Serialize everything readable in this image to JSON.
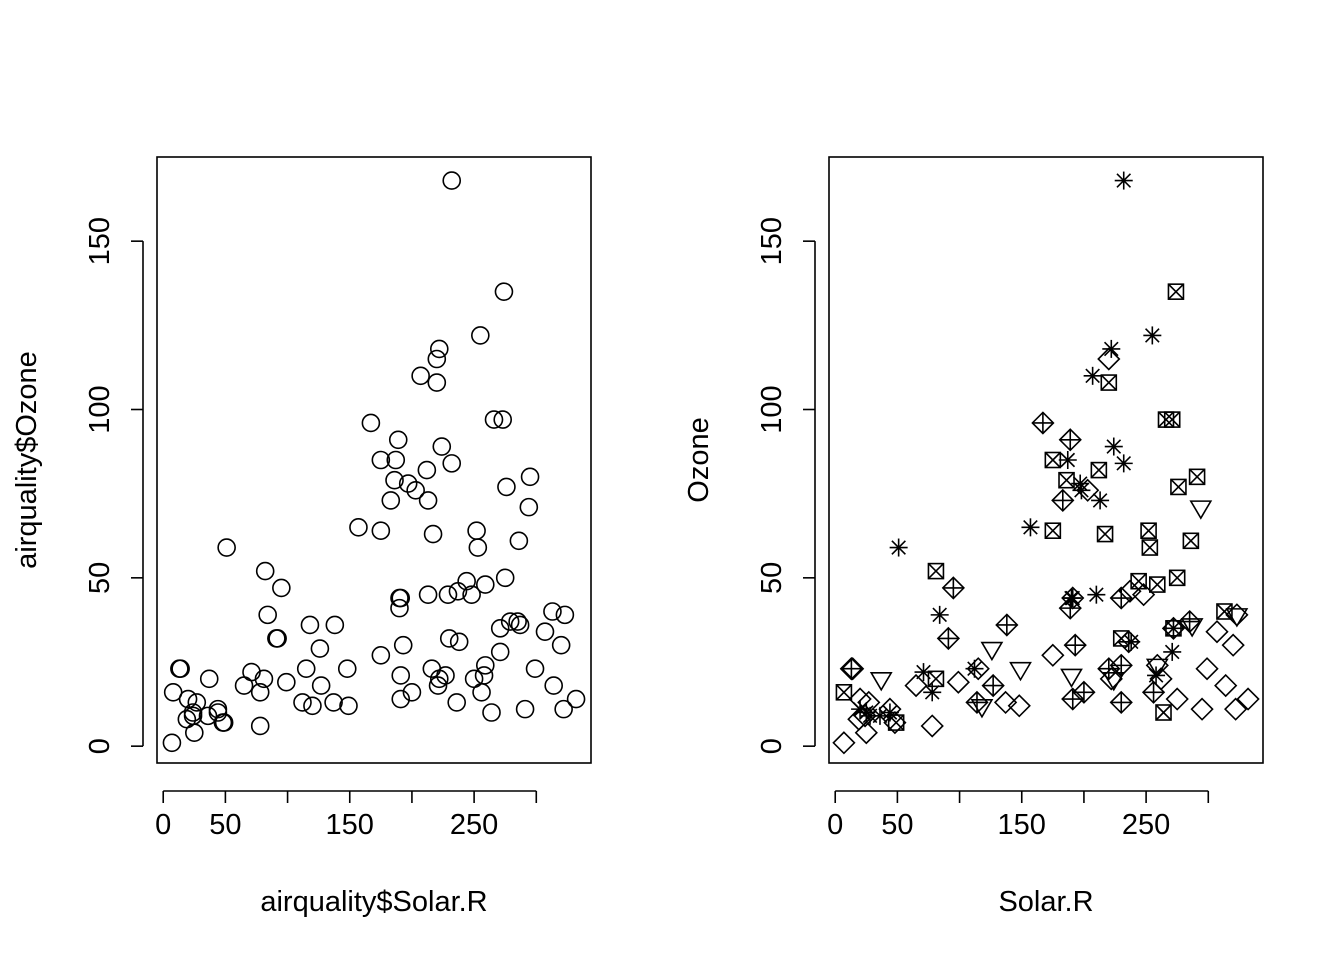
{
  "chart_data": [
    {
      "type": "scatter",
      "title": "",
      "xlabel": "airquality$Solar.R",
      "ylabel": "airquality$Ozone",
      "xlim": [
        -5,
        344
      ],
      "ylim": [
        -5,
        175
      ],
      "xticks": [
        0,
        50,
        100,
        150,
        200,
        250,
        300
      ],
      "xtick_labels": [
        "0",
        "50",
        "",
        "150",
        "",
        "250",
        ""
      ],
      "yticks": [
        0,
        50,
        100,
        150
      ],
      "ytick_labels": [
        "0",
        "50",
        "100",
        "150"
      ],
      "marker": "circle",
      "grid": false,
      "legend": "none",
      "points": [
        [
          7,
          1
        ],
        [
          8,
          16
        ],
        [
          13,
          23
        ],
        [
          14,
          23
        ],
        [
          19,
          8
        ],
        [
          20,
          14
        ],
        [
          24,
          9
        ],
        [
          24,
          10
        ],
        [
          25,
          4
        ],
        [
          27,
          13
        ],
        [
          36,
          9
        ],
        [
          37,
          20
        ],
        [
          44,
          11
        ],
        [
          44,
          10
        ],
        [
          48,
          7
        ],
        [
          49,
          7
        ],
        [
          51,
          59
        ],
        [
          65,
          18
        ],
        [
          71,
          22
        ],
        [
          78,
          16
        ],
        [
          78,
          6
        ],
        [
          81,
          20
        ],
        [
          82,
          52
        ],
        [
          84,
          39
        ],
        [
          91,
          32
        ],
        [
          92,
          32
        ],
        [
          95,
          47
        ],
        [
          99,
          19
        ],
        [
          112,
          13
        ],
        [
          115,
          23
        ],
        [
          118,
          36
        ],
        [
          120,
          12
        ],
        [
          126,
          29
        ],
        [
          127,
          18
        ],
        [
          137,
          13
        ],
        [
          138,
          36
        ],
        [
          148,
          23
        ],
        [
          149,
          12
        ],
        [
          157,
          65
        ],
        [
          167,
          96
        ],
        [
          175,
          85
        ],
        [
          175,
          27
        ],
        [
          175,
          64
        ],
        [
          183,
          73
        ],
        [
          186,
          79
        ],
        [
          187,
          85
        ],
        [
          189,
          91
        ],
        [
          190,
          44
        ],
        [
          190,
          41
        ],
        [
          191,
          44
        ],
        [
          191,
          21
        ],
        [
          191,
          14
        ],
        [
          193,
          30
        ],
        [
          197,
          78
        ],
        [
          200,
          16
        ],
        [
          203,
          76
        ],
        [
          207,
          110
        ],
        [
          212,
          82
        ],
        [
          213,
          73
        ],
        [
          213,
          45
        ],
        [
          216,
          23
        ],
        [
          217,
          63
        ],
        [
          220,
          115
        ],
        [
          220,
          108
        ],
        [
          221,
          18
        ],
        [
          222,
          118
        ],
        [
          222,
          20
        ],
        [
          224,
          89
        ],
        [
          227,
          21
        ],
        [
          229,
          45
        ],
        [
          230,
          32
        ],
        [
          232,
          84
        ],
        [
          232,
          168
        ],
        [
          236,
          13
        ],
        [
          237,
          46
        ],
        [
          238,
          31
        ],
        [
          244,
          49
        ],
        [
          248,
          45
        ],
        [
          250,
          20
        ],
        [
          252,
          64
        ],
        [
          253,
          59
        ],
        [
          255,
          122
        ],
        [
          256,
          16
        ],
        [
          258,
          21
        ],
        [
          259,
          48
        ],
        [
          259,
          24
        ],
        [
          264,
          10
        ],
        [
          266,
          97
        ],
        [
          271,
          35
        ],
        [
          271,
          28
        ],
        [
          273,
          97
        ],
        [
          274,
          135
        ],
        [
          275,
          50
        ],
        [
          276,
          77
        ],
        [
          279,
          37
        ],
        [
          285,
          37
        ],
        [
          286,
          61
        ],
        [
          287,
          36
        ],
        [
          291,
          11
        ],
        [
          294,
          71
        ],
        [
          295,
          80
        ],
        [
          299,
          23
        ],
        [
          307,
          34
        ],
        [
          313,
          40
        ],
        [
          314,
          18
        ],
        [
          320,
          30
        ],
        [
          322,
          11
        ],
        [
          323,
          39
        ],
        [
          332,
          14
        ]
      ]
    },
    {
      "type": "scatter",
      "title": "",
      "xlabel": "Solar.R",
      "ylabel": "Ozone",
      "xlim": [
        -5,
        344
      ],
      "ylim": [
        -5,
        175
      ],
      "xticks": [
        0,
        50,
        100,
        150,
        200,
        250,
        300
      ],
      "xtick_labels": [
        "0",
        "50",
        "",
        "150",
        "",
        "250",
        ""
      ],
      "yticks": [
        0,
        50,
        100,
        150
      ],
      "ytick_labels": [
        "0",
        "50",
        "100",
        "150"
      ],
      "grid": false,
      "legend": "none",
      "series": [
        {
          "name": "diamond",
          "marker": "diamond",
          "points": [
            [
              7,
              1
            ],
            [
              13,
              23
            ],
            [
              14,
              23
            ],
            [
              19,
              8
            ],
            [
              20,
              14
            ],
            [
              24,
              9
            ],
            [
              25,
              4
            ],
            [
              27,
              13
            ],
            [
              44,
              11
            ],
            [
              48,
              7
            ],
            [
              65,
              18
            ],
            [
              78,
              6
            ],
            [
              99,
              19
            ],
            [
              115,
              23
            ],
            [
              137,
              13
            ],
            [
              148,
              12
            ],
            [
              175,
              27
            ],
            [
              191,
              44
            ],
            [
              203,
              76
            ],
            [
              220,
              115
            ],
            [
              222,
              20
            ],
            [
              237,
              46
            ],
            [
              248,
              45
            ],
            [
              259,
              24
            ],
            [
              262,
              20
            ],
            [
              275,
              14
            ],
            [
              295,
              11
            ],
            [
              299,
              23
            ],
            [
              307,
              34
            ],
            [
              314,
              18
            ],
            [
              320,
              30
            ],
            [
              322,
              11
            ],
            [
              323,
              39
            ],
            [
              332,
              14
            ]
          ]
        },
        {
          "name": "diamond-plus",
          "marker": "diamond-plus",
          "points": [
            [
              13,
              23
            ],
            [
              91,
              32
            ],
            [
              95,
              47
            ],
            [
              114,
              13
            ],
            [
              138,
              36
            ],
            [
              127,
              18
            ],
            [
              167,
              96
            ],
            [
              183,
              73
            ],
            [
              189,
              91
            ],
            [
              189,
              41
            ],
            [
              191,
              14
            ],
            [
              193,
              30
            ],
            [
              200,
              16
            ],
            [
              220,
              23
            ],
            [
              230,
              44
            ],
            [
              230,
              24
            ],
            [
              230,
              13
            ],
            [
              236,
              31
            ],
            [
              256,
              16
            ],
            [
              272,
              35
            ],
            [
              285,
              37
            ]
          ]
        },
        {
          "name": "triangle-down",
          "marker": "triangle-down",
          "points": [
            [
              37,
              20
            ],
            [
              118,
              12
            ],
            [
              126,
              29
            ],
            [
              149,
              23
            ],
            [
              190,
              21
            ],
            [
              224,
              20
            ],
            [
              259,
              24
            ],
            [
              287,
              36
            ],
            [
              294,
              71
            ],
            [
              323,
              39
            ]
          ]
        },
        {
          "name": "asterisk",
          "marker": "asterisk",
          "points": [
            [
              20,
              11
            ],
            [
              25,
              10
            ],
            [
              28,
              9
            ],
            [
              36,
              9
            ],
            [
              44,
              10
            ],
            [
              51,
              59
            ],
            [
              71,
              22
            ],
            [
              78,
              16
            ],
            [
              84,
              39
            ],
            [
              112,
              23
            ],
            [
              157,
              65
            ],
            [
              187,
              85
            ],
            [
              190,
              44
            ],
            [
              191,
              44
            ],
            [
              197,
              78
            ],
            [
              198,
              76
            ],
            [
              207,
              110
            ],
            [
              210,
              45
            ],
            [
              213,
              73
            ],
            [
              222,
              118
            ],
            [
              224,
              89
            ],
            [
              232,
              84
            ],
            [
              232,
              168
            ],
            [
              238,
              31
            ],
            [
              255,
              122
            ],
            [
              258,
              21
            ],
            [
              271,
              28
            ]
          ]
        },
        {
          "name": "box-x",
          "marker": "box-x",
          "points": [
            [
              7,
              16
            ],
            [
              49,
              7
            ],
            [
              81,
              52
            ],
            [
              81,
              20
            ],
            [
              175,
              85
            ],
            [
              175,
              64
            ],
            [
              186,
              79
            ],
            [
              212,
              82
            ],
            [
              217,
              63
            ],
            [
              220,
              108
            ],
            [
              230,
              32
            ],
            [
              244,
              49
            ],
            [
              252,
              64
            ],
            [
              253,
              59
            ],
            [
              259,
              48
            ],
            [
              264,
              10
            ],
            [
              266,
              97
            ],
            [
              271,
              97
            ],
            [
              272,
              35
            ],
            [
              274,
              135
            ],
            [
              275,
              50
            ],
            [
              276,
              77
            ],
            [
              286,
              61
            ],
            [
              291,
              80
            ],
            [
              313,
              40
            ]
          ]
        }
      ]
    }
  ]
}
